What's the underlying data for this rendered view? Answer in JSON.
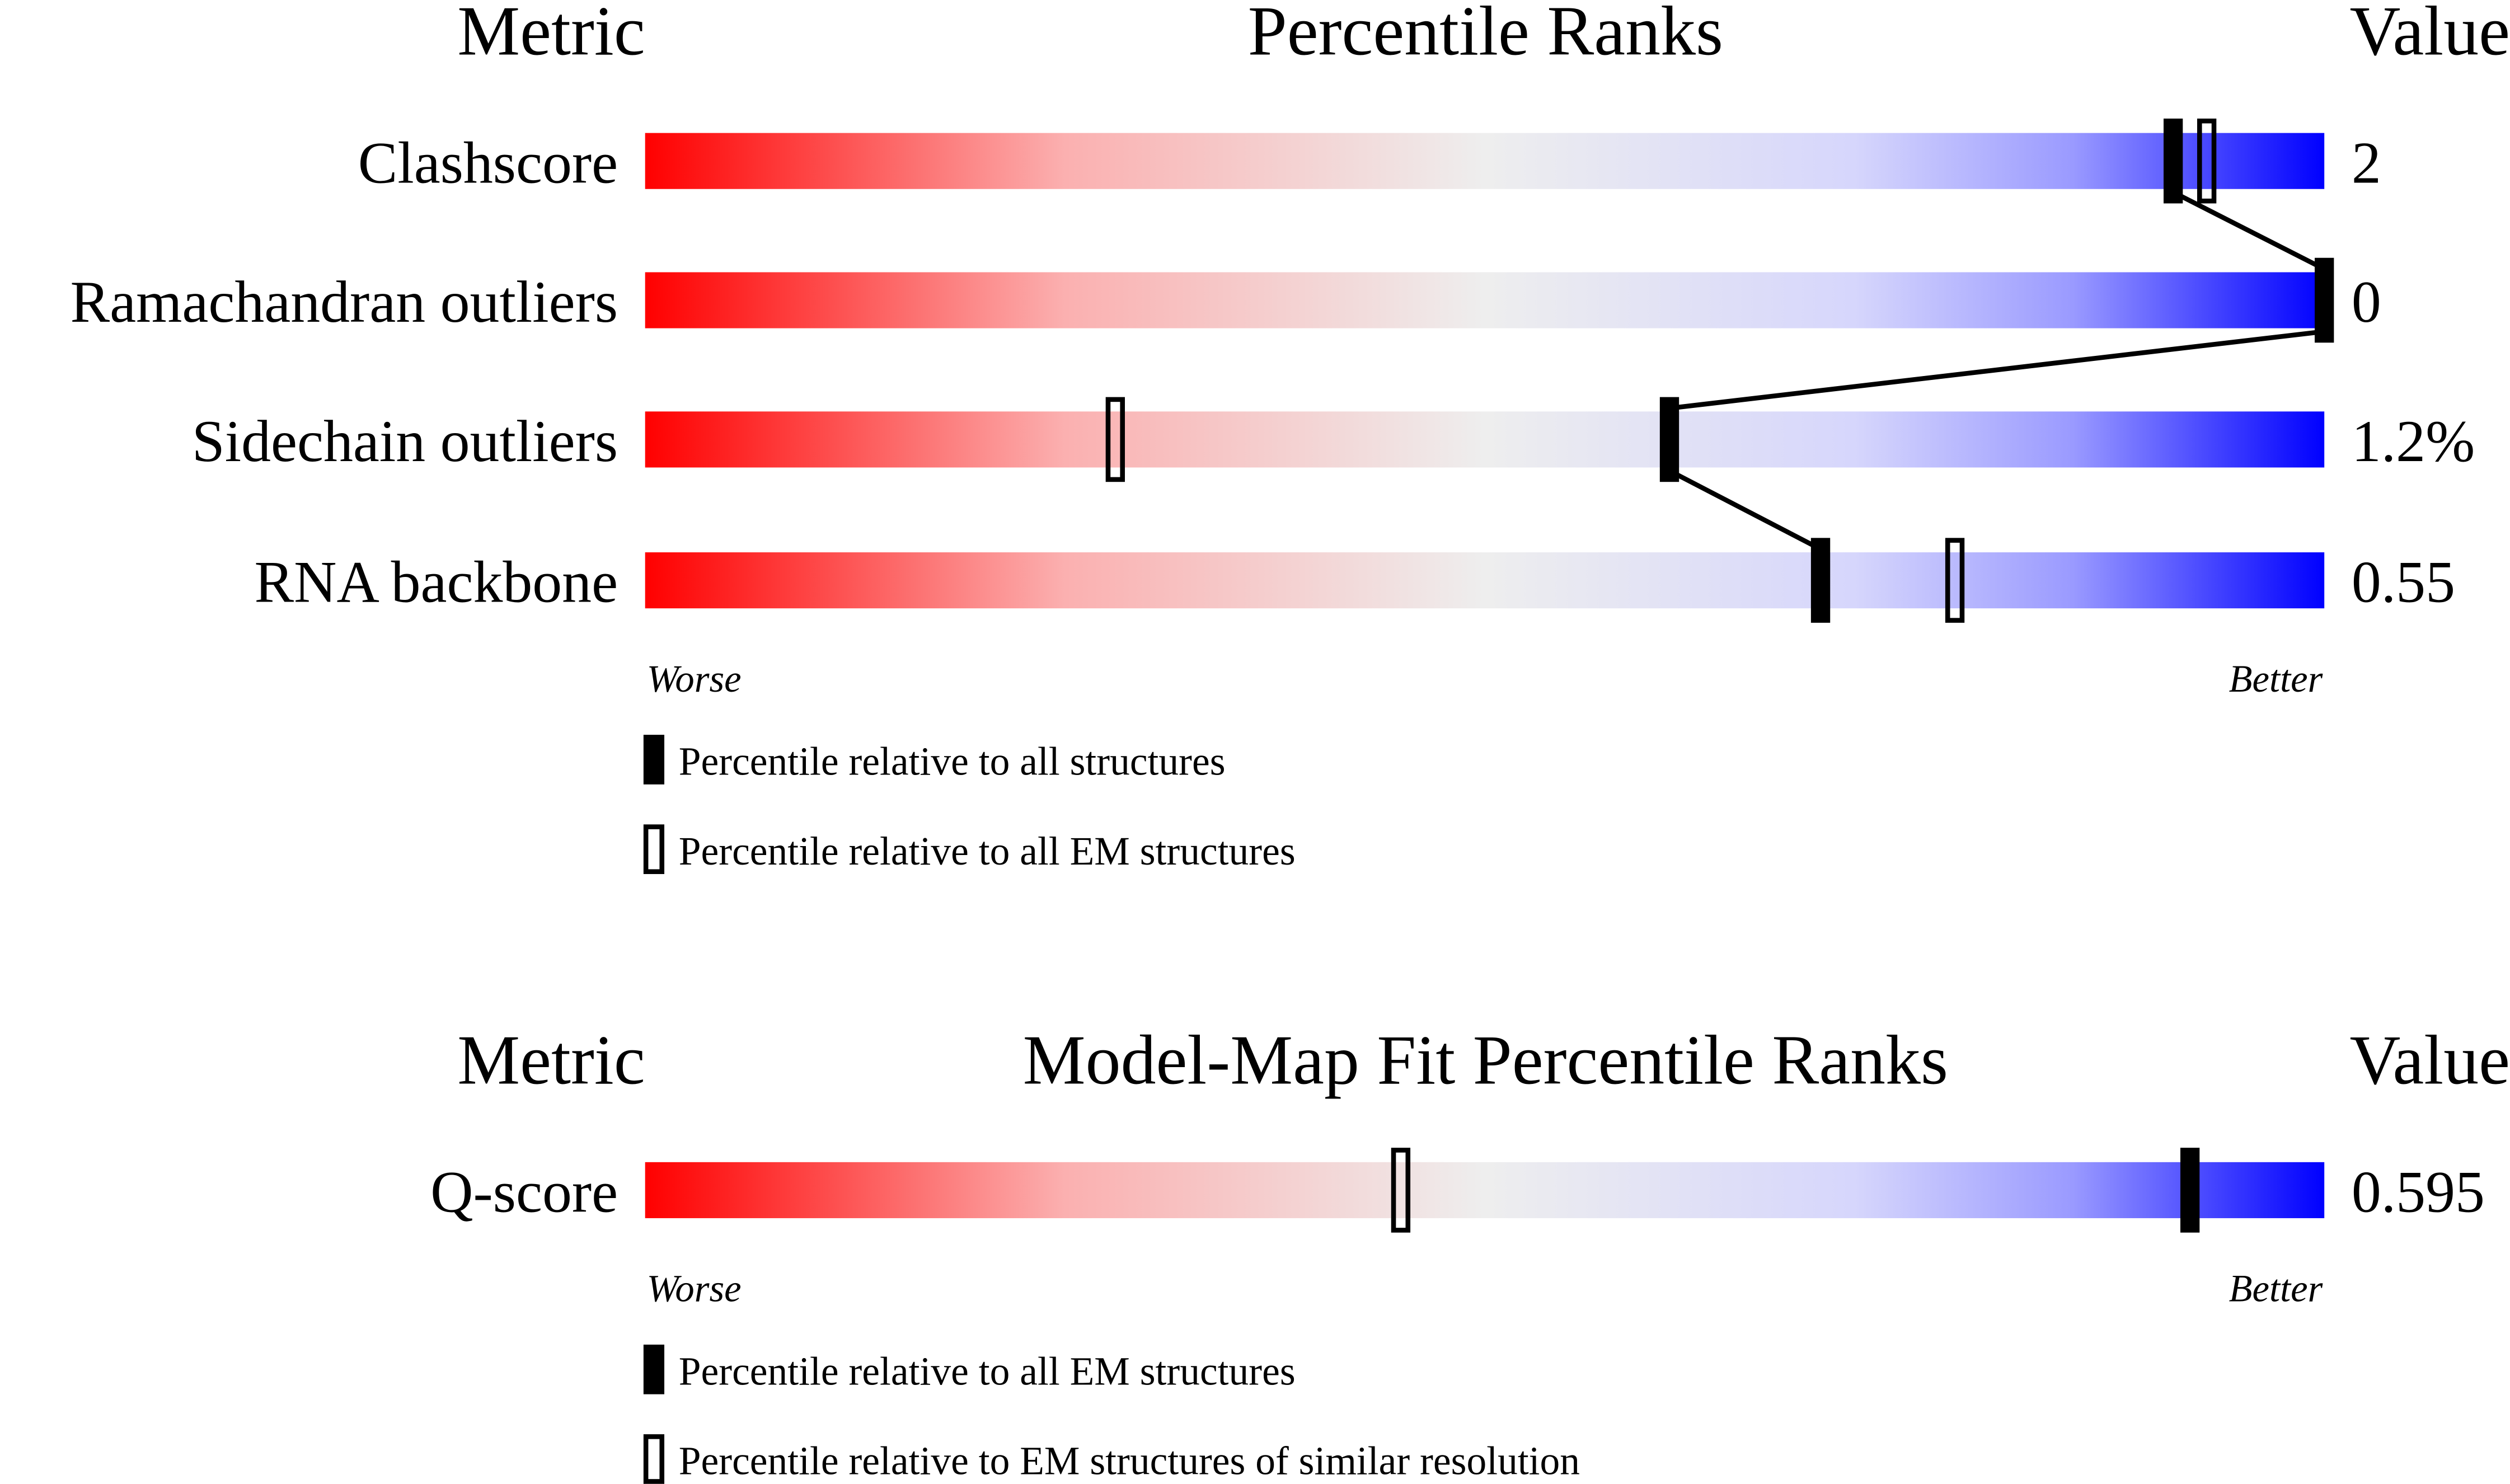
{
  "chart_data": [
    {
      "type": "bar",
      "subtype": "percentile-slider",
      "headers": {
        "metric": "Metric",
        "title": "Percentile Ranks",
        "value": "Value"
      },
      "xlim": [
        0,
        100
      ],
      "scale_left": "Worse",
      "scale_right": "Better",
      "gradient_colors": [
        "#ff0000",
        "#eeeeee",
        "#d8d8ff",
        "#0000ff"
      ],
      "rows": [
        {
          "metric": "Clashscore",
          "value": "2",
          "percentile_all": 91,
          "percentile_em": 93
        },
        {
          "metric": "Ramachandran outliers",
          "value": "0",
          "percentile_all": 100,
          "percentile_em": null
        },
        {
          "metric": "Sidechain outliers",
          "value": "1.2%",
          "percentile_all": 61,
          "percentile_em": 28
        },
        {
          "metric": "RNA backbone",
          "value": "0.55",
          "percentile_all": 70,
          "percentile_em": 78
        }
      ],
      "legend": [
        {
          "marker": "filled",
          "label": "Percentile relative to all structures"
        },
        {
          "marker": "open",
          "label": "Percentile relative to all EM structures"
        }
      ]
    },
    {
      "type": "bar",
      "subtype": "percentile-slider",
      "headers": {
        "metric": "Metric",
        "title": "Model-Map Fit Percentile Ranks",
        "value": "Value"
      },
      "xlim": [
        0,
        100
      ],
      "scale_left": "Worse",
      "scale_right": "Better",
      "gradient_colors": [
        "#ff0000",
        "#eeeeee",
        "#d8d8ff",
        "#0000ff"
      ],
      "rows": [
        {
          "metric": "Q-score",
          "value": "0.595",
          "percentile_all": 92,
          "percentile_em": 45
        }
      ],
      "legend": [
        {
          "marker": "filled",
          "label": "Percentile relative to all EM structures"
        },
        {
          "marker": "open",
          "label": "Percentile relative to EM structures of similar resolution"
        }
      ]
    }
  ]
}
